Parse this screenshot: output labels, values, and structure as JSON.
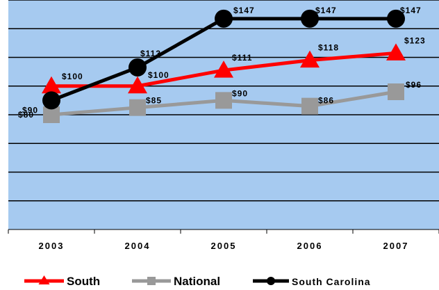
{
  "chart_data": {
    "type": "line",
    "categories": [
      "2003",
      "2004",
      "2005",
      "2006",
      "2007"
    ],
    "ylim": [
      0,
      160
    ],
    "grid": true,
    "legend_position": "bottom",
    "plot_background": "#a6caf0",
    "series": [
      {
        "name": "South",
        "values": [
          100,
          100,
          111,
          118,
          123
        ],
        "labels": [
          "$100",
          "$100",
          "$111",
          "$118",
          "$123"
        ],
        "color": "#ff0000",
        "marker": "triangle"
      },
      {
        "name": "National",
        "values": [
          80,
          85,
          90,
          86,
          96
        ],
        "labels": [
          "$80",
          "$85",
          "$90",
          "$86",
          "$96"
        ],
        "color": "#999999",
        "marker": "square"
      },
      {
        "name": "South Carolina",
        "values": [
          90,
          113,
          147,
          147,
          147
        ],
        "labels": [
          "$90",
          "$113",
          "$147",
          "$147",
          "$147"
        ],
        "color": "#000000",
        "marker": "circle"
      }
    ]
  }
}
